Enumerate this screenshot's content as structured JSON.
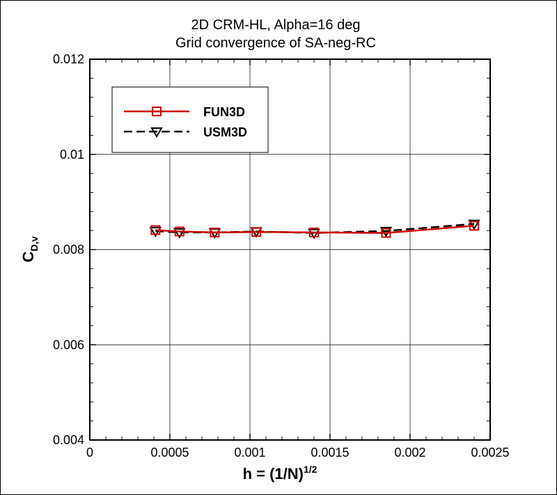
{
  "chart_data": {
    "type": "line",
    "title": [
      "2D CRM-HL, Alpha=16 deg",
      "Grid convergence of SA-neg-RC"
    ],
    "xlabel": {
      "main": "h = (1/N)",
      "sup": "1/2"
    },
    "ylabel": {
      "main": "C",
      "sub": "D,v"
    },
    "xlim": [
      0,
      0.0025
    ],
    "ylim": [
      0.004,
      0.012
    ],
    "xticks": [
      0,
      0.0005,
      0.001,
      0.0015,
      0.002,
      0.0025
    ],
    "xtick_labels": [
      "0",
      "0.0005",
      "0.001",
      "0.0015",
      "0.002",
      "0.0025"
    ],
    "yticks": [
      0.004,
      0.006,
      0.008,
      0.01,
      0.012
    ],
    "ytick_labels": [
      "0.004",
      "0.006",
      "0.008",
      "0.01",
      "0.012"
    ],
    "grid": true,
    "legend_position": "top-left",
    "series": [
      {
        "name": "FUN3D",
        "color": "#cc0000",
        "line_style": "solid",
        "marker": "square",
        "x": [
          0.00041,
          0.00056,
          0.00078,
          0.00104,
          0.0014,
          0.00185,
          0.0024
        ],
        "y": [
          0.00841,
          0.00838,
          0.00836,
          0.00837,
          0.00836,
          0.00835,
          0.0085
        ]
      },
      {
        "name": "USM3D",
        "color": "#000000",
        "line_style": "dashed",
        "marker": "triangle-down",
        "x": [
          0.00041,
          0.00056,
          0.00078,
          0.00104,
          0.0014,
          0.00185,
          0.0024
        ],
        "y": [
          0.00839,
          0.00836,
          0.00836,
          0.00838,
          0.00835,
          0.00839,
          0.00854
        ]
      }
    ]
  }
}
